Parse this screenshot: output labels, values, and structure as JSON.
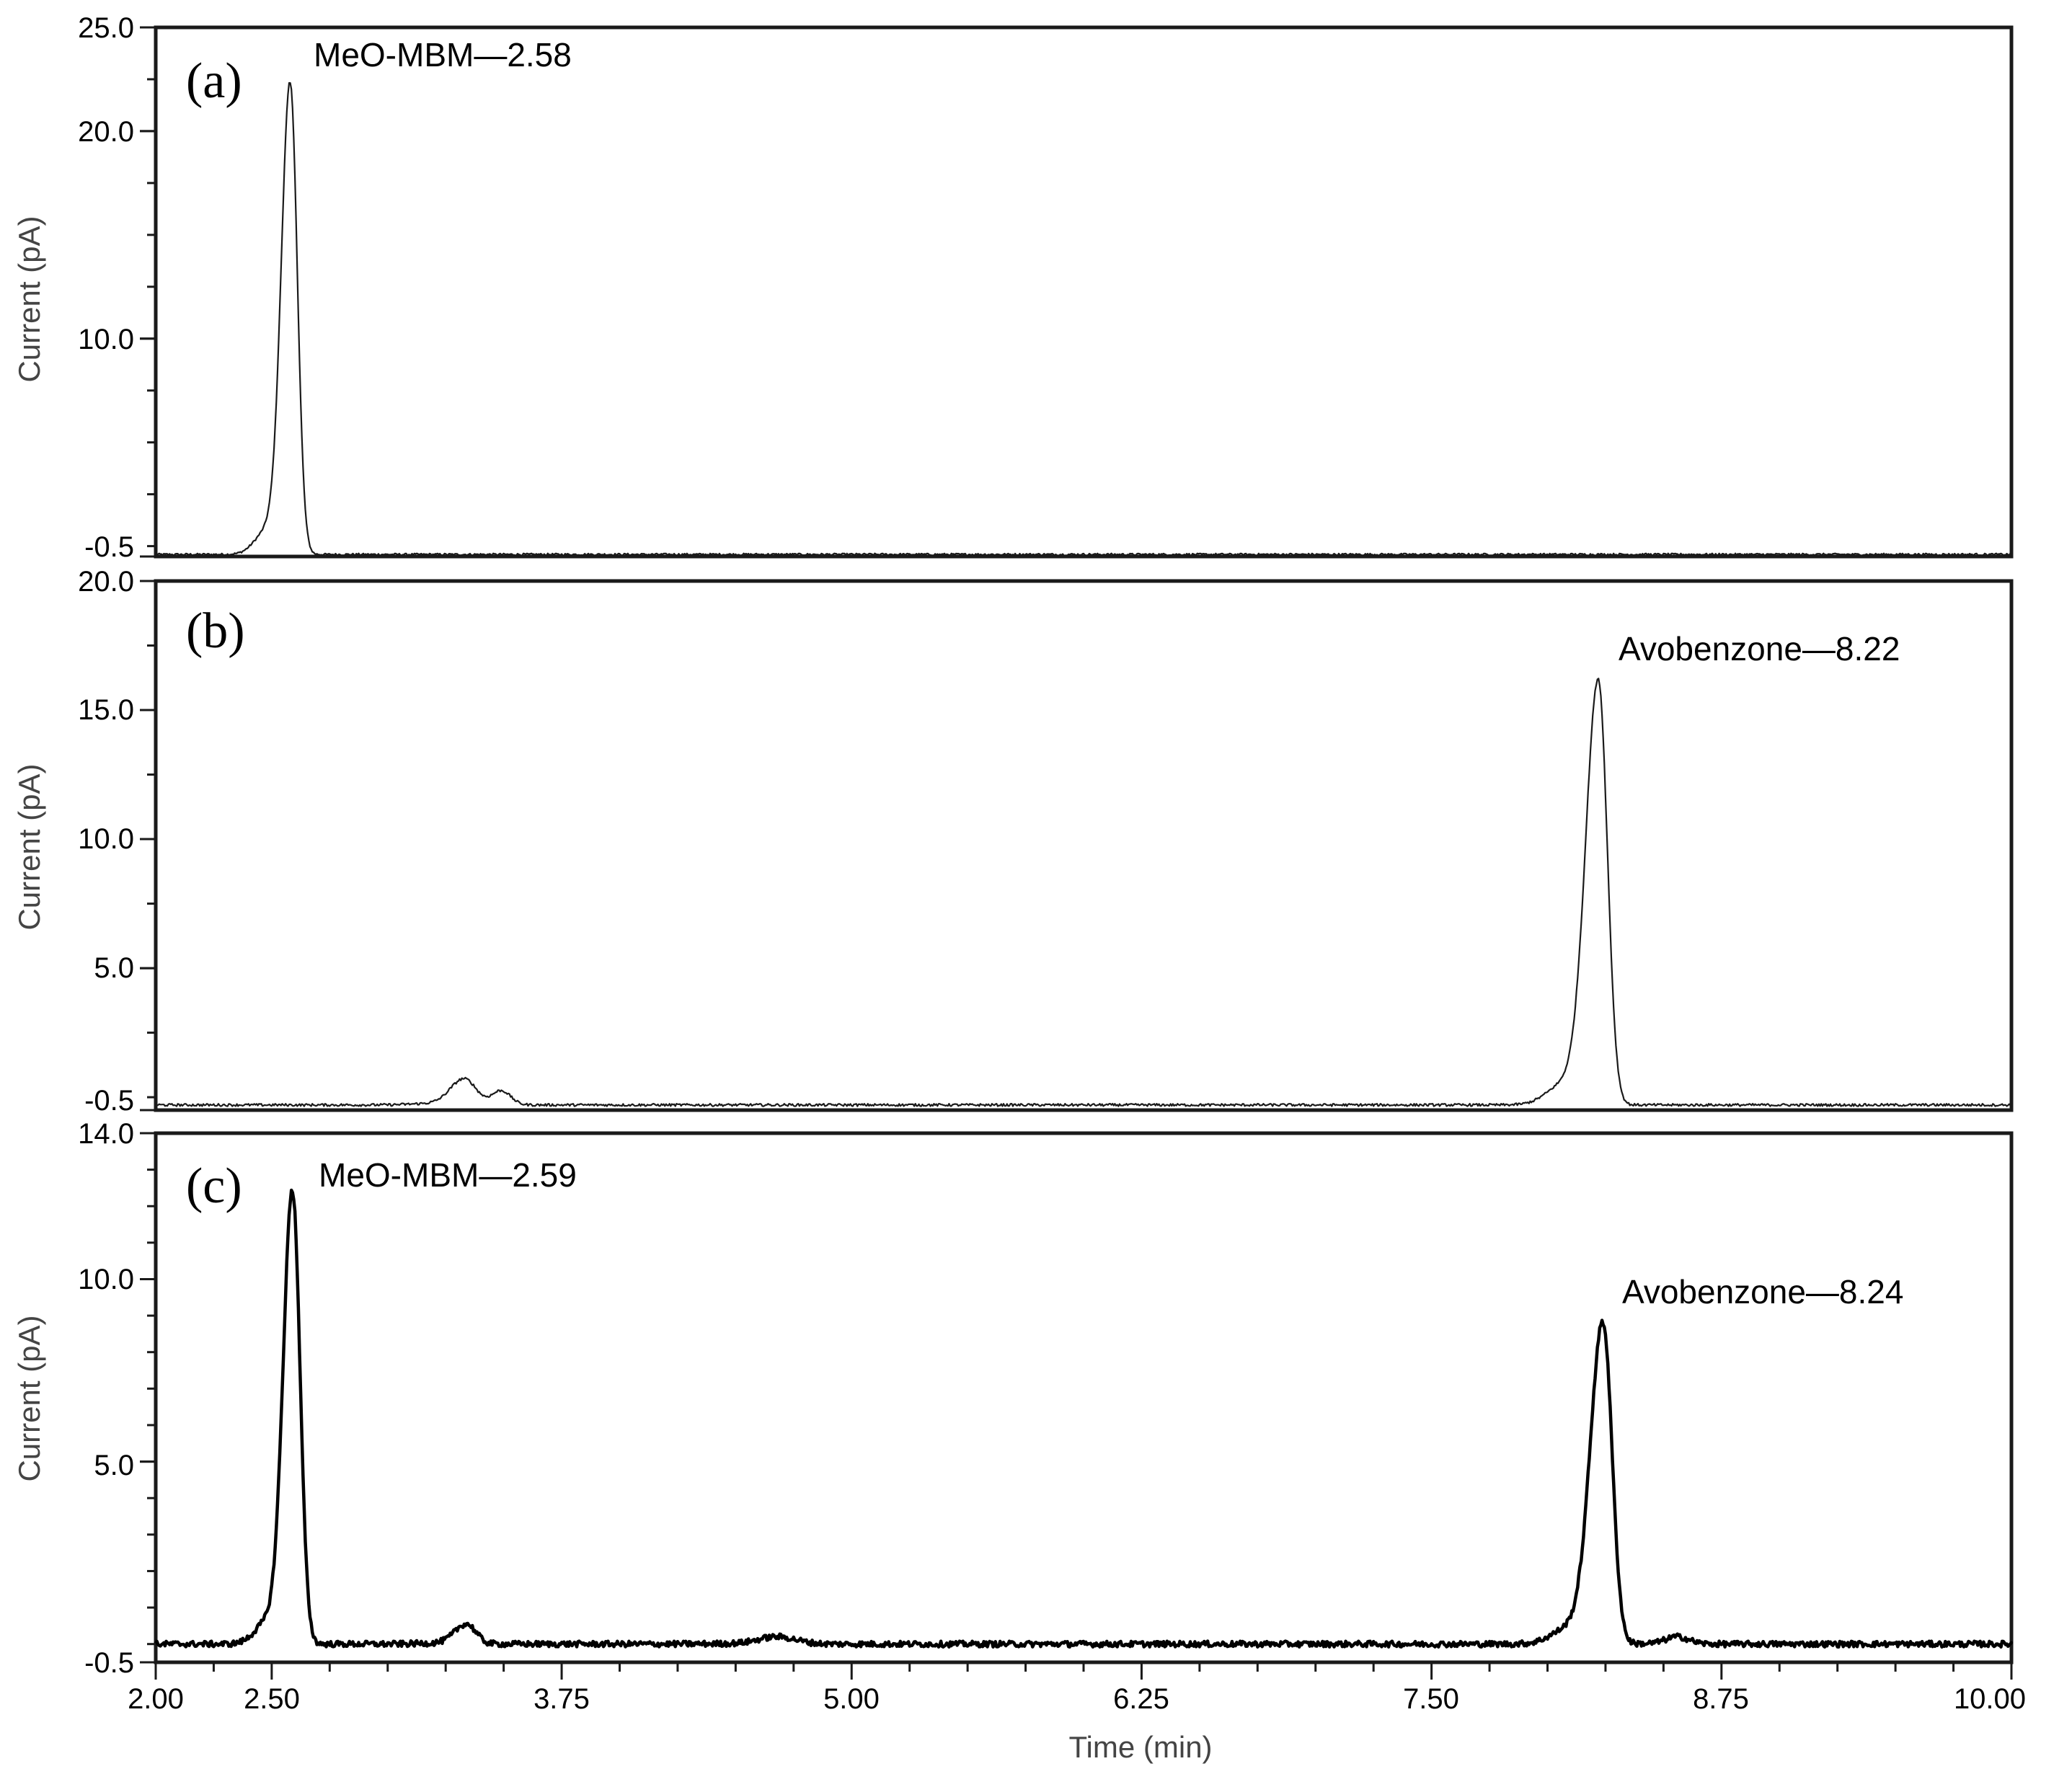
{
  "chart_data": [
    {
      "type": "line",
      "panel_label": "(a)",
      "ylabel": "Current (pA)",
      "xlim": [
        2.0,
        10.0
      ],
      "ylim": [
        -0.5,
        25.0
      ],
      "y_ticks": [
        "25.0",
        "20.0",
        "10.0",
        "-0.5"
      ],
      "y_tick_values": [
        25.0,
        20.0,
        10.0,
        -0.5
      ],
      "line_color": "#1a1a1a",
      "series": [
        {
          "baseline": -0.4,
          "peaks": [
            {
              "rt": 2.58,
              "height": 22.7,
              "sigma_left": 0.038,
              "sigma_right": 0.03
            }
          ],
          "noise": 0.05
        }
      ],
      "annotations": [
        {
          "text": "MeO-MBM—2.58",
          "x": 2.58,
          "y": 22.7
        }
      ]
    },
    {
      "type": "line",
      "panel_label": "(b)",
      "ylabel": "Current (pA)",
      "xlim": [
        2.0,
        10.0
      ],
      "ylim": [
        -0.5,
        20.0
      ],
      "y_ticks": [
        "20.0",
        "15.0",
        "10.0",
        "5.0",
        "-0.5"
      ],
      "y_tick_values": [
        20.0,
        15.0,
        10.0,
        5.0,
        -0.5
      ],
      "line_color": "#1a1a1a",
      "series": [
        {
          "baseline": -0.3,
          "peaks": [
            {
              "rt": 3.33,
              "height": 1.0,
              "sigma_left": 0.06,
              "sigma_right": 0.05
            },
            {
              "rt": 3.49,
              "height": 0.55,
              "sigma_left": 0.04,
              "sigma_right": 0.04
            },
            {
              "rt": 8.22,
              "height": 16.4,
              "sigma_left": 0.055,
              "sigma_right": 0.038
            }
          ],
          "noise": 0.05
        }
      ],
      "annotations": [
        {
          "text": "Avobenzone—8.22",
          "x": 8.22,
          "y": 16.4
        }
      ]
    },
    {
      "type": "line",
      "panel_label": "(c)",
      "ylabel": "Current (pA)",
      "xlabel": "Time (min)",
      "xlim": [
        2.0,
        10.0
      ],
      "ylim": [
        -0.5,
        14.0
      ],
      "x_ticks": [
        "2.00",
        "2.50",
        "3.75",
        "5.00",
        "6.25",
        "7.50",
        "8.75",
        "10.00"
      ],
      "x_tick_values": [
        2.0,
        2.5,
        3.75,
        5.0,
        6.25,
        7.5,
        8.75,
        10.0
      ],
      "y_ticks": [
        "14.0",
        "10.0",
        "5.0",
        "-0.5"
      ],
      "y_tick_values": [
        14.0,
        10.0,
        5.0,
        -0.5
      ],
      "line_color": "#000000",
      "series": [
        {
          "baseline": 0.0,
          "peaks": [
            {
              "rt": 2.59,
              "height": 12.4,
              "sigma_left": 0.04,
              "sigma_right": 0.032
            },
            {
              "rt": 3.34,
              "height": 0.55,
              "sigma_left": 0.05,
              "sigma_right": 0.04
            },
            {
              "rt": 4.68,
              "height": 0.2,
              "sigma_left": 0.08,
              "sigma_right": 0.08
            },
            {
              "rt": 8.24,
              "height": 8.8,
              "sigma_left": 0.055,
              "sigma_right": 0.038
            },
            {
              "rt": 8.56,
              "height": 0.2,
              "sigma_left": 0.05,
              "sigma_right": 0.05
            }
          ],
          "noise": 0.08
        }
      ],
      "annotations": [
        {
          "text": "MeO-MBM—2.59",
          "x": 2.59,
          "y": 12.4
        },
        {
          "text": "Avobenzone—8.24",
          "x": 8.24,
          "y": 8.8
        }
      ]
    }
  ]
}
